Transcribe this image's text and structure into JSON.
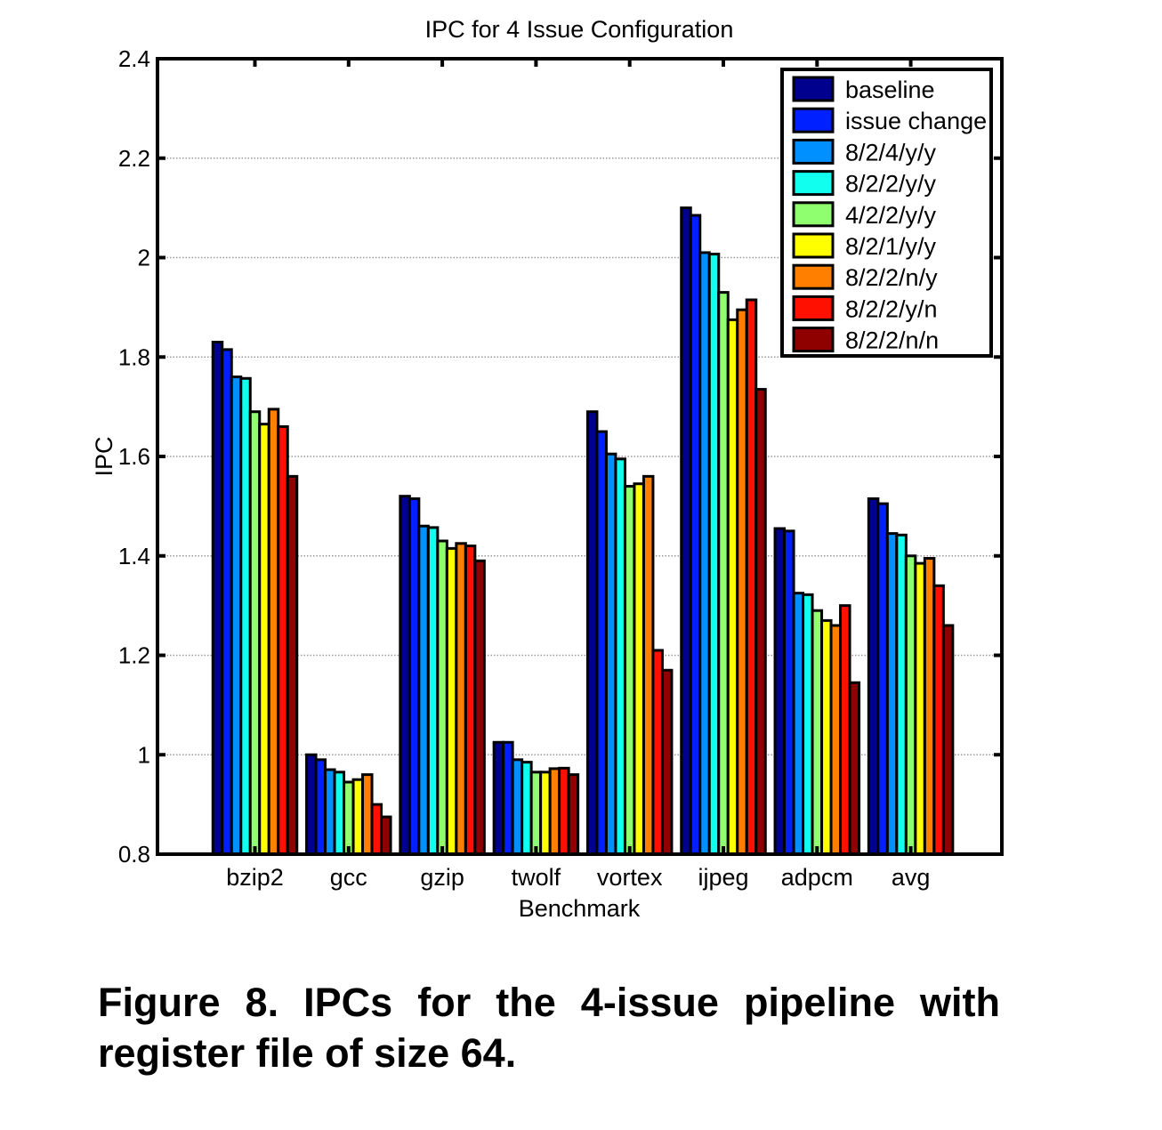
{
  "chart_data": {
    "type": "bar",
    "title": "IPC for 4 Issue Configuration",
    "xlabel": "Benchmark",
    "ylabel": "IPC",
    "ylim": [
      0.8,
      2.4
    ],
    "yticks": [
      "0.8",
      "1",
      "1.2",
      "1.4",
      "1.6",
      "1.8",
      "2",
      "2.2",
      "2.4"
    ],
    "grid": "horizontal dotted",
    "legend_position": "top-right",
    "categories": [
      "bzip2",
      "gcc",
      "gzip",
      "twolf",
      "vortex",
      "ijpeg",
      "adpcm",
      "avg"
    ],
    "series": [
      {
        "name": "baseline",
        "color": "#00008f",
        "values": [
          1.83,
          1.0,
          1.52,
          1.025,
          1.69,
          2.1,
          1.455,
          1.515
        ]
      },
      {
        "name": "issue change",
        "color": "#0020ff",
        "values": [
          1.815,
          0.99,
          1.515,
          1.025,
          1.65,
          2.085,
          1.45,
          1.505
        ]
      },
      {
        "name": "8/2/4/y/y",
        "color": "#0090ff",
        "values": [
          1.76,
          0.97,
          1.46,
          0.99,
          1.605,
          2.01,
          1.325,
          1.445
        ]
      },
      {
        "name": "8/2/2/y/y",
        "color": "#10ffef",
        "values": [
          1.757,
          0.965,
          1.457,
          0.985,
          1.595,
          2.007,
          1.322,
          1.442
        ]
      },
      {
        "name": "4/2/2/y/y",
        "color": "#8fff70",
        "values": [
          1.69,
          0.945,
          1.43,
          0.965,
          1.54,
          1.93,
          1.29,
          1.4
        ]
      },
      {
        "name": "8/2/1/y/y",
        "color": "#ffff00",
        "values": [
          1.665,
          0.95,
          1.415,
          0.965,
          1.545,
          1.875,
          1.27,
          1.385
        ]
      },
      {
        "name": "8/2/2/n/y",
        "color": "#ff8000",
        "values": [
          1.695,
          0.96,
          1.425,
          0.972,
          1.56,
          1.895,
          1.26,
          1.395
        ]
      },
      {
        "name": "8/2/2/y/n",
        "color": "#ff1000",
        "values": [
          1.66,
          0.9,
          1.42,
          0.973,
          1.21,
          1.915,
          1.3,
          1.34
        ]
      },
      {
        "name": "8/2/2/n/n",
        "color": "#8f0000",
        "values": [
          1.56,
          0.875,
          1.39,
          0.96,
          1.17,
          1.735,
          1.145,
          1.26
        ]
      }
    ]
  },
  "caption": "Figure 8. IPCs for the 4-issue pipeline with register file of size 64."
}
